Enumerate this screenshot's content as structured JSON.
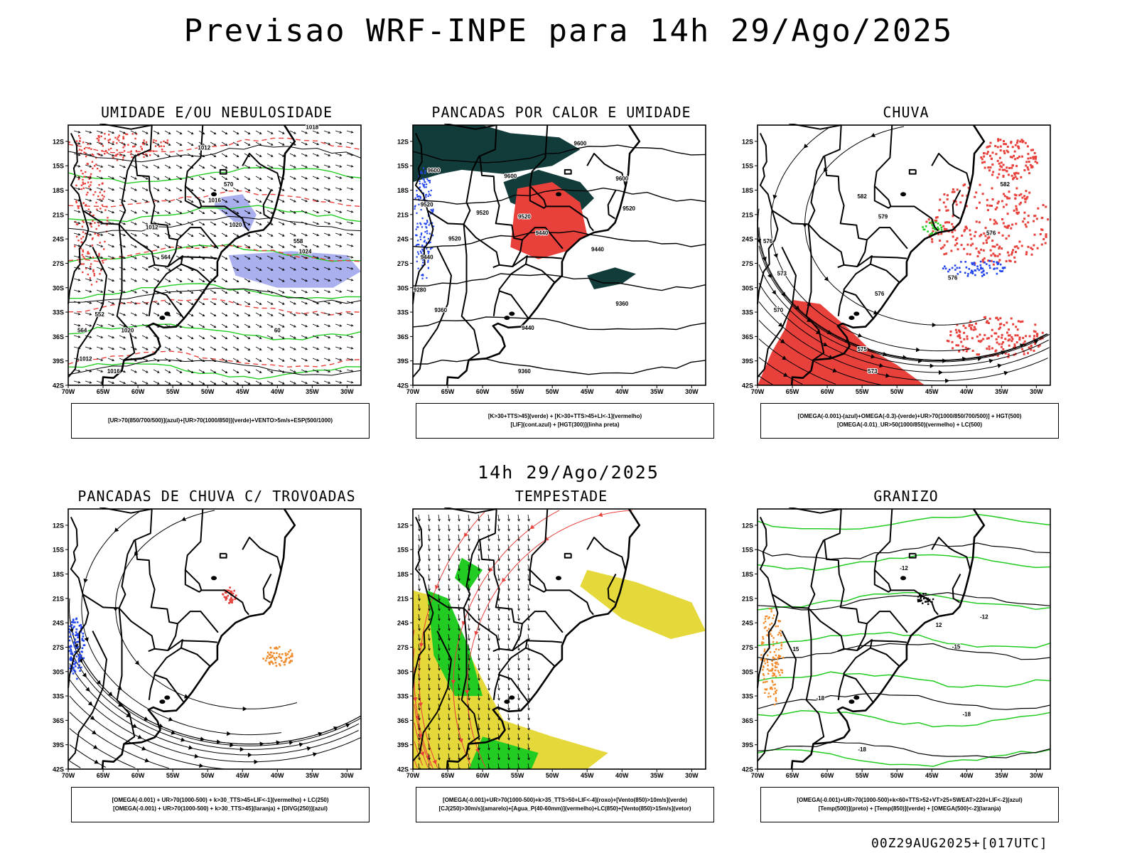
{
  "header": {
    "main_title": "Previsao WRF-INPE  para 14h 29/Ago/2025",
    "mid_title": "14h 29/Ago/2025",
    "footer": "00Z29AUG2025+[017UTC]"
  },
  "axes": {
    "lat_labels": [
      "12S",
      "15S",
      "18S",
      "21S",
      "24S",
      "27S",
      "30S",
      "33S",
      "36S",
      "39S",
      "42S"
    ],
    "lon_labels": [
      "70W",
      "65W",
      "60W",
      "55W",
      "50W",
      "45W",
      "40W",
      "35W",
      "30W"
    ]
  },
  "panels": [
    {
      "id": "p1",
      "title": "UMIDADE E/OU NEBULOSIDADE",
      "legend": [
        "[UR>70(850/700/500)](azul)+[UR>70(1000/850)](verde)+VENTO>5m/s+ESP(500/1000)"
      ],
      "labels": [
        {
          "t": "1012",
          "lon": -58,
          "lat": -22.8
        },
        {
          "t": "1016",
          "lon": -49,
          "lat": -19.5
        },
        {
          "t": "1020",
          "lon": -46,
          "lat": -22.5
        },
        {
          "t": "1024",
          "lon": -36,
          "lat": -25.8
        },
        {
          "t": "1020",
          "lon": -61.5,
          "lat": -35.5
        },
        {
          "t": "1016",
          "lon": -63.5,
          "lat": -40.5
        },
        {
          "t": "1018",
          "lon": -35,
          "lat": -10.5
        },
        {
          "t": "570",
          "lon": -47,
          "lat": -17.5
        },
        {
          "t": "564",
          "lon": -56,
          "lat": -26.5
        },
        {
          "t": "558",
          "lon": -37,
          "lat": -24.5
        },
        {
          "t": "552",
          "lon": -65.5,
          "lat": -33.5
        },
        {
          "t": "564",
          "lon": -68,
          "lat": -35.5
        },
        {
          "t": "60",
          "lon": -40,
          "lat": -35.5
        },
        {
          "t": "1012",
          "lon": -50.5,
          "lat": -13
        },
        {
          "t": "1012",
          "lon": -67.5,
          "lat": -39
        }
      ]
    },
    {
      "id": "p2",
      "title": "PANCADAS POR CALOR E UMIDADE",
      "legend": [
        "[K>30+TTS>45](verde) + [K>30+TTS>45+LI<-1](vermelho)",
        "[LIF](cont.azul) + [HGT(300)](linha preta)"
      ],
      "labels": [
        {
          "t": "9600",
          "lon": -46,
          "lat": -12.5
        },
        {
          "t": "9600",
          "lon": -67,
          "lat": -15.8
        },
        {
          "t": "9600",
          "lon": -56,
          "lat": -16.5
        },
        {
          "t": "9600",
          "lon": -40,
          "lat": -16.8
        },
        {
          "t": "9520",
          "lon": -68,
          "lat": -20
        },
        {
          "t": "9520",
          "lon": -60,
          "lat": -21
        },
        {
          "t": "9520",
          "lon": -54,
          "lat": -21.5
        },
        {
          "t": "9520",
          "lon": -39,
          "lat": -20.5
        },
        {
          "t": "9520",
          "lon": -64,
          "lat": -24.2
        },
        {
          "t": "9440",
          "lon": -68,
          "lat": -26.5
        },
        {
          "t": "9440",
          "lon": -51.5,
          "lat": -23.5
        },
        {
          "t": "9440",
          "lon": -43.5,
          "lat": -25.5
        },
        {
          "t": "9440",
          "lon": -53.5,
          "lat": -35.2
        },
        {
          "t": "9360",
          "lon": -66,
          "lat": -33
        },
        {
          "t": "9360",
          "lon": -40,
          "lat": -32.2
        },
        {
          "t": "9360",
          "lon": -54,
          "lat": -40.5
        },
        {
          "t": "9280",
          "lon": -69,
          "lat": -30.5
        }
      ]
    },
    {
      "id": "p3",
      "title": "CHUVA",
      "legend": [
        "[OMEGA(-0.001)-(azul)+OMEGA(-0.3)-(verde)+UR>70(1000/850/700/500)] + HGT(500)",
        "[OMEGA(-0.01)_UR>50(1000/850)(vermelho) + LC(500)"
      ],
      "labels": [
        {
          "t": "582",
          "lon": -55,
          "lat": -19
        },
        {
          "t": "582",
          "lon": -34.5,
          "lat": -17.5
        },
        {
          "t": "579",
          "lon": -52,
          "lat": -21.5
        },
        {
          "t": "576",
          "lon": -52.5,
          "lat": -31
        },
        {
          "t": "576",
          "lon": -36.5,
          "lat": -23.5
        },
        {
          "t": "576",
          "lon": -42,
          "lat": -29
        },
        {
          "t": "570",
          "lon": -67,
          "lat": -33
        },
        {
          "t": "575",
          "lon": -55,
          "lat": -37.8
        },
        {
          "t": "573",
          "lon": -53.5,
          "lat": -40.5
        },
        {
          "t": "573",
          "lon": -66.5,
          "lat": -28.5
        },
        {
          "t": "576",
          "lon": -68.5,
          "lat": -24.5
        }
      ]
    },
    {
      "id": "p4",
      "title": "PANCADAS DE CHUVA C/ TROVOADAS",
      "legend": [
        "[OMEGA(-0.001) + UR>70(1000-500) + k>30_TTS>45+LIF<-1](vermelho) + LC(250)",
        "[OMEGA(-0.001) + UR>70(1000-500) + k>30_TTS>45](laranja) + [DIVG(250)](azul)"
      ],
      "labels": []
    },
    {
      "id": "p5",
      "title": "TEMPESTADE",
      "legend": [
        "[OMEGA(-0.001)+UR>70(1000-500)+k>35_TTS>50+LIF<-4](roxo)+[Vento(850)>10m/s](verde)",
        "[CJ(250)>30m/s](amarelo)+[Agua_P(40-60mm)](vermelho)+LC(850)+[Vento(850)>15m/s](vetor)"
      ],
      "labels": []
    },
    {
      "id": "p6",
      "title": "GRANIZO",
      "legend": [
        "[OMEGA(-0.001)+UR>70(1000-500)+k<60+TTS>52+VT>25+SWEAT>220+LIF<-2](azul)",
        "[Temp(500)](preto) + [Temp(850)](verde) + [OMEGA(500)<-2](laranja)"
      ],
      "labels": [
        {
          "t": "-12",
          "lon": -49,
          "lat": -17.5
        },
        {
          "t": "12",
          "lon": -44,
          "lat": -24.5
        },
        {
          "t": "-12",
          "lon": -37.5,
          "lat": -23.5
        },
        {
          "t": "15",
          "lon": -64.5,
          "lat": -27.5
        },
        {
          "t": "-15",
          "lon": -41.5,
          "lat": -27.2
        },
        {
          "t": "-18",
          "lon": -40,
          "lat": -35.5
        },
        {
          "t": "-18",
          "lon": -61,
          "lat": -33.5
        },
        {
          "t": "-18",
          "lon": -55,
          "lat": -39.8
        }
      ]
    }
  ],
  "colors": {
    "red": "#e8413c",
    "green": "#22cc22",
    "blue": "#2244ee",
    "lavender": "#aab0ee",
    "darkgreen": "#123c3a",
    "orange": "#f08a2a",
    "yellow": "#e5d83a",
    "purple": "#8e5ee0"
  }
}
